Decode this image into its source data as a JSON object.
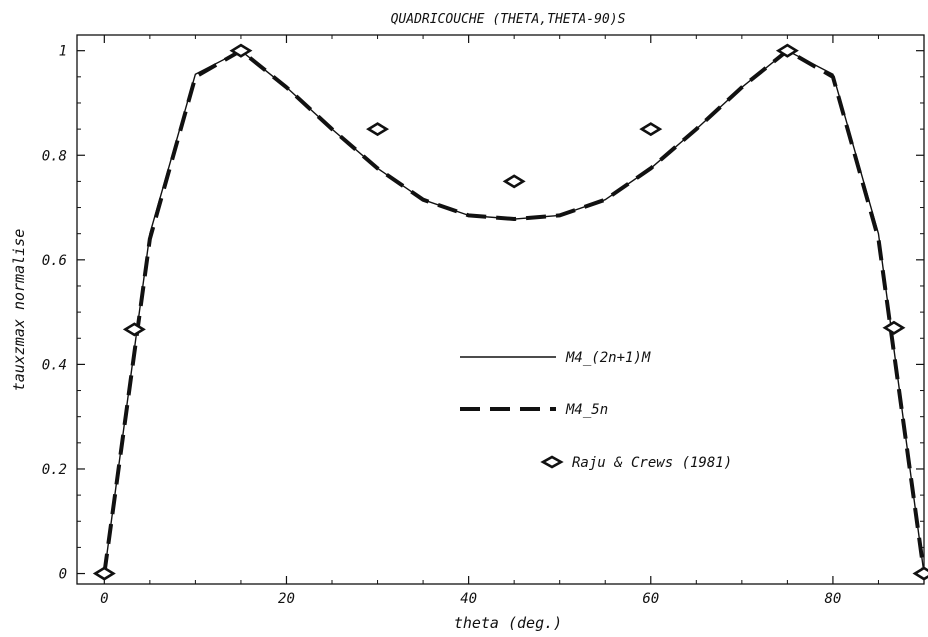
{
  "chart_data": {
    "type": "line",
    "title": "QUADRICOUCHE (THETA,THETA-90)S",
    "xlabel": "theta (deg.)",
    "ylabel": "tauxzmax normalise",
    "xlim": [
      -3,
      90
    ],
    "ylim": [
      -0.02,
      1.03
    ],
    "x_ticks": [
      0,
      20,
      40,
      60,
      80
    ],
    "x_tick_labels": [
      "0",
      "20",
      "40",
      "60",
      "80"
    ],
    "y_ticks": [
      0,
      0.2,
      0.4,
      0.6,
      0.8,
      1
    ],
    "y_tick_labels": [
      "0",
      "0.2",
      "0.4",
      "0.6",
      "0.8",
      "1"
    ],
    "grid": false,
    "legend_position": "center-right",
    "series": [
      {
        "name": "M4_(2n+1)M",
        "style": "solid",
        "color": "#111111",
        "x": [
          0,
          5,
          10,
          15,
          20,
          25,
          30,
          35,
          40,
          45,
          50,
          55,
          60,
          65,
          70,
          75,
          80,
          85,
          90
        ],
        "y": [
          0,
          0.65,
          0.955,
          1.0,
          0.93,
          0.85,
          0.775,
          0.715,
          0.685,
          0.678,
          0.685,
          0.715,
          0.775,
          0.85,
          0.93,
          1.0,
          0.955,
          0.65,
          0
        ]
      },
      {
        "name": "M4_5n",
        "style": "dashed",
        "color": "#111111",
        "x": [
          0,
          5,
          10,
          15,
          20,
          25,
          30,
          35,
          40,
          45,
          50,
          55,
          60,
          65,
          70,
          75,
          80,
          85,
          90
        ],
        "y": [
          0,
          0.64,
          0.95,
          1.0,
          0.93,
          0.85,
          0.775,
          0.715,
          0.685,
          0.678,
          0.685,
          0.715,
          0.775,
          0.85,
          0.93,
          1.0,
          0.95,
          0.64,
          0
        ]
      },
      {
        "name": "Raju & Crews (1981)",
        "style": "markers",
        "marker": "diamond",
        "color": "#111111",
        "x": [
          0,
          3.3,
          15,
          30,
          45,
          60,
          75,
          86.7,
          90
        ],
        "y": [
          0,
          0.467,
          1.0,
          0.85,
          0.75,
          0.85,
          1.0,
          0.47,
          0
        ]
      }
    ]
  }
}
